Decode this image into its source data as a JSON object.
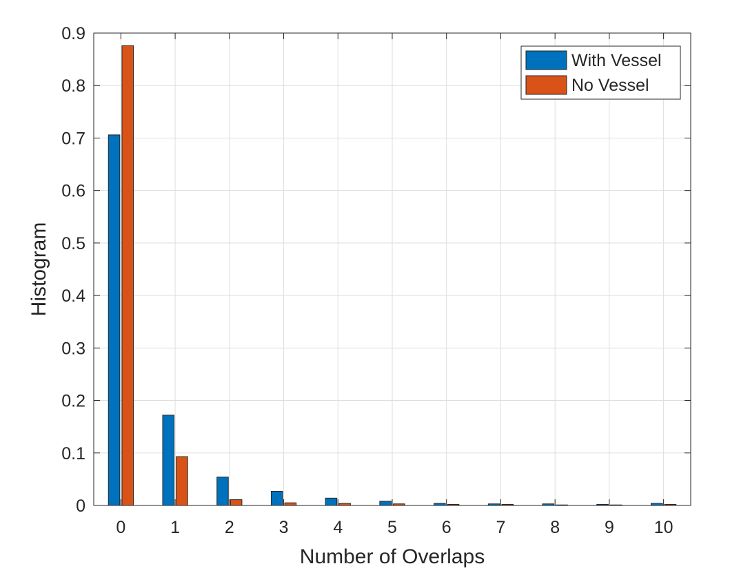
{
  "chart_data": {
    "type": "bar",
    "title": "",
    "xlabel": "Number of Overlaps",
    "ylabel": "Histogram",
    "categories": [
      "0",
      "1",
      "2",
      "3",
      "4",
      "5",
      "6",
      "7",
      "8",
      "9",
      "10"
    ],
    "x": [
      0,
      1,
      2,
      3,
      4,
      5,
      6,
      7,
      8,
      9,
      10
    ],
    "xlim": [
      -0.5,
      10.5
    ],
    "ylim": [
      0,
      0.9
    ],
    "yticks": [
      0,
      0.1,
      0.2,
      0.3,
      0.4,
      0.5,
      0.6,
      0.7,
      0.8,
      0.9
    ],
    "ytick_labels": [
      "0",
      "0.1",
      "0.2",
      "0.3",
      "0.4",
      "0.5",
      "0.6",
      "0.7",
      "0.8",
      "0.9"
    ],
    "grid": true,
    "legend_position": "top-right",
    "series": [
      {
        "name": "With Vessel",
        "color": "#0072BD",
        "values": [
          0.706,
          0.172,
          0.054,
          0.027,
          0.014,
          0.008,
          0.004,
          0.003,
          0.003,
          0.002,
          0.004
        ]
      },
      {
        "name": "No Vessel",
        "color": "#D95319",
        "values": [
          0.876,
          0.093,
          0.011,
          0.005,
          0.004,
          0.003,
          0.002,
          0.002,
          0.001,
          0.001,
          0.002
        ]
      }
    ]
  }
}
